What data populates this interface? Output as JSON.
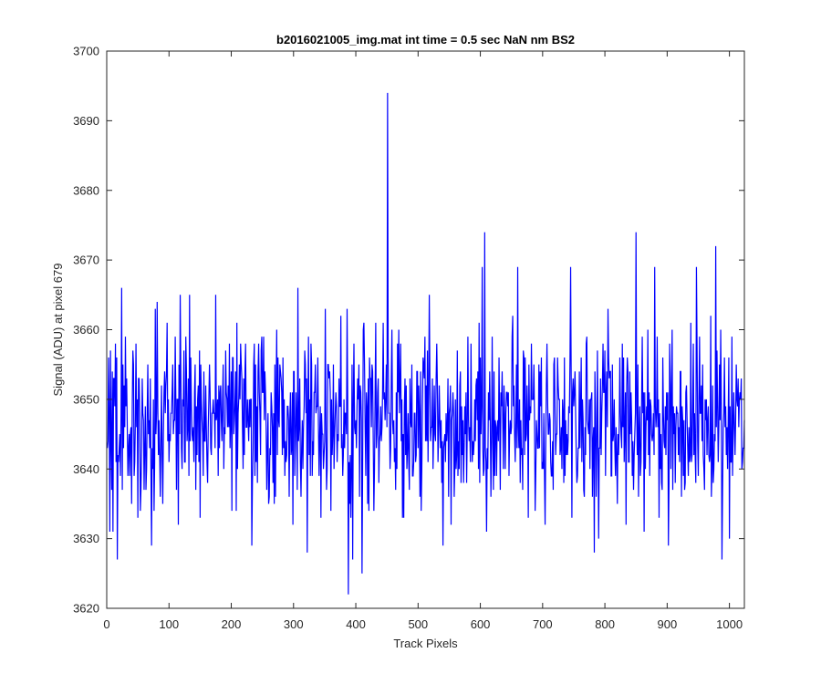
{
  "chart_data": {
    "type": "line",
    "title": "b2016021005_img.mat int time = 0.5 sec  NaN nm BS2",
    "xlabel": "Track Pixels",
    "ylabel": "Signal (ADU) at pixel 679",
    "xlim": [
      0,
      1024
    ],
    "ylim": [
      3620,
      3700
    ],
    "xticks": [
      0,
      100,
      200,
      300,
      400,
      500,
      600,
      700,
      800,
      900,
      1000
    ],
    "yticks": [
      3620,
      3630,
      3640,
      3650,
      3660,
      3670,
      3680,
      3690,
      3700
    ],
    "grid": false,
    "series": [
      {
        "color": "#0000ff",
        "noise_mean": 3647,
        "noise_min": 3622,
        "noise_max": 3674,
        "num_points": 1024,
        "x_start": 1,
        "key_points": [
          {
            "x": 10,
            "y": 3631
          },
          {
            "x": 17,
            "y": 3627
          },
          {
            "x": 30,
            "y": 3659
          },
          {
            "x": 72,
            "y": 3629
          },
          {
            "x": 118,
            "y": 3665
          },
          {
            "x": 133,
            "y": 3665
          },
          {
            "x": 175,
            "y": 3665
          },
          {
            "x": 233,
            "y": 3629
          },
          {
            "x": 307,
            "y": 3666
          },
          {
            "x": 322,
            "y": 3628
          },
          {
            "x": 388,
            "y": 3622
          },
          {
            "x": 395,
            "y": 3627
          },
          {
            "x": 410,
            "y": 3625
          },
          {
            "x": 451,
            "y": 3694
          },
          {
            "x": 518,
            "y": 3665
          },
          {
            "x": 540,
            "y": 3629
          },
          {
            "x": 603,
            "y": 3669
          },
          {
            "x": 607,
            "y": 3674
          },
          {
            "x": 660,
            "y": 3669
          },
          {
            "x": 745,
            "y": 3669
          },
          {
            "x": 783,
            "y": 3628
          },
          {
            "x": 850,
            "y": 3674
          },
          {
            "x": 880,
            "y": 3669
          },
          {
            "x": 902,
            "y": 3629
          },
          {
            "x": 947,
            "y": 3669
          },
          {
            "x": 978,
            "y": 3672
          },
          {
            "x": 988,
            "y": 3627
          },
          {
            "x": 1000,
            "y": 3630
          }
        ]
      }
    ]
  }
}
